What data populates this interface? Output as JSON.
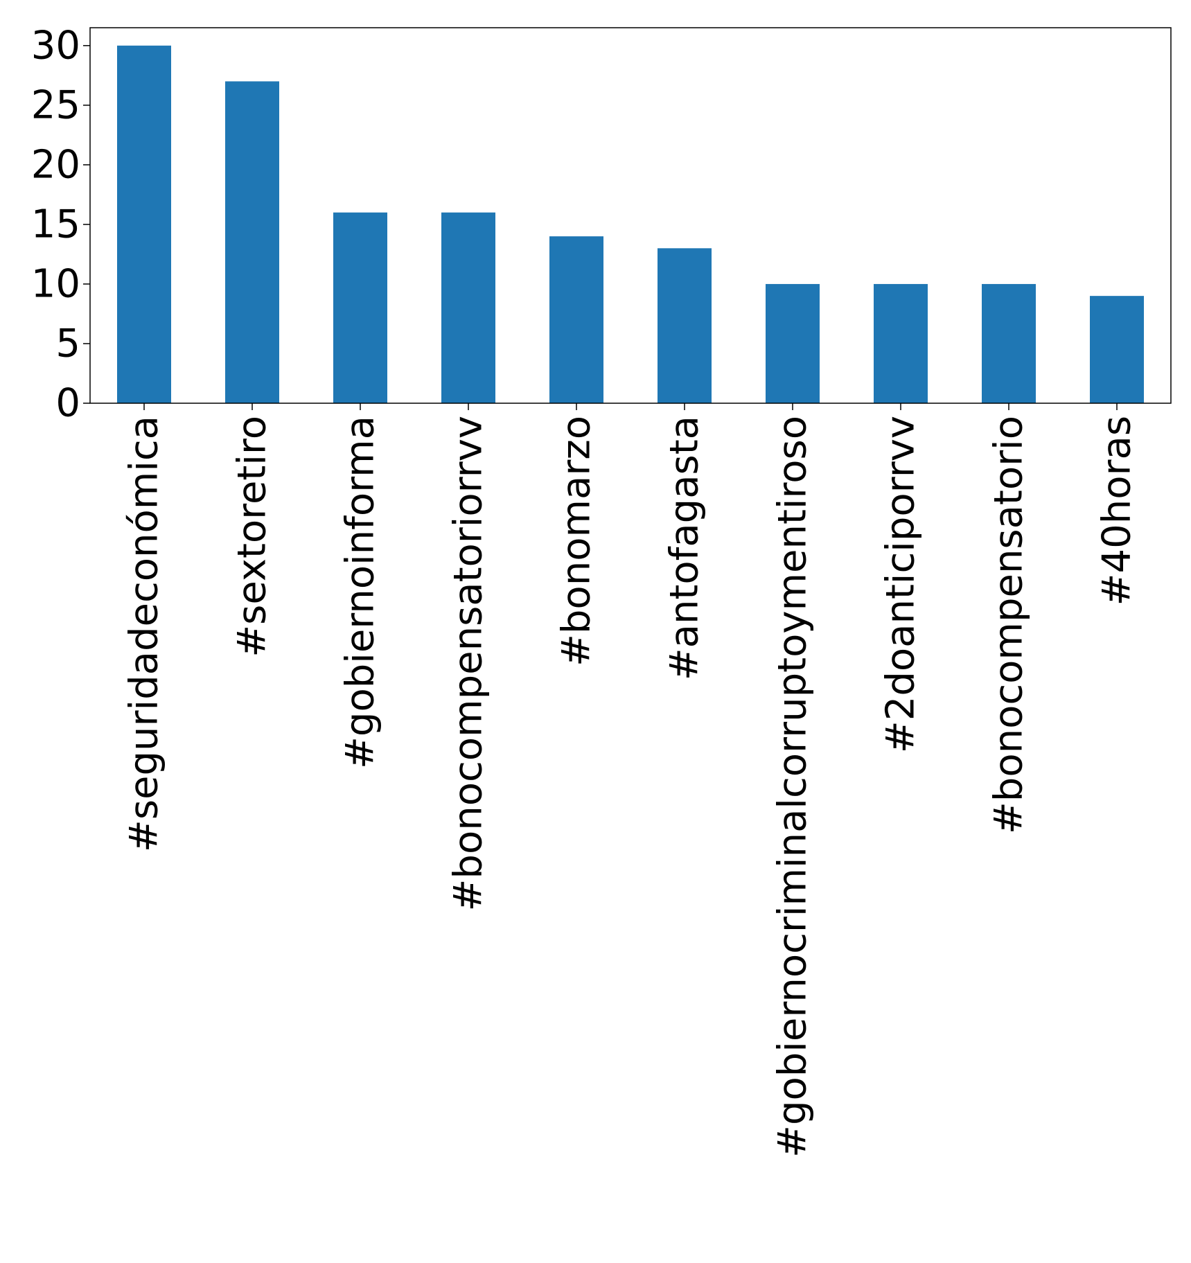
{
  "chart_data": {
    "type": "bar",
    "title": "",
    "xlabel": "",
    "ylabel": "",
    "categories": [
      "#seguridadeconómica",
      "#sextoretiro",
      "#gobiernoinforma",
      "#bonocompensatoriorrvv",
      "#bonomarzo",
      "#antofagasta",
      "#gobiernocriminalcorruptoymentiroso",
      "#2doanticiporrvv",
      "#bonocompensatorio",
      "#40horas"
    ],
    "values": [
      30,
      27,
      16,
      16,
      14,
      13,
      10,
      10,
      10,
      9
    ],
    "ylim": [
      0,
      31.5
    ],
    "yticks": [
      0,
      5,
      10,
      15,
      20,
      25,
      30
    ],
    "bar_color": "#1f77b4",
    "grid": false,
    "legend": "none"
  }
}
